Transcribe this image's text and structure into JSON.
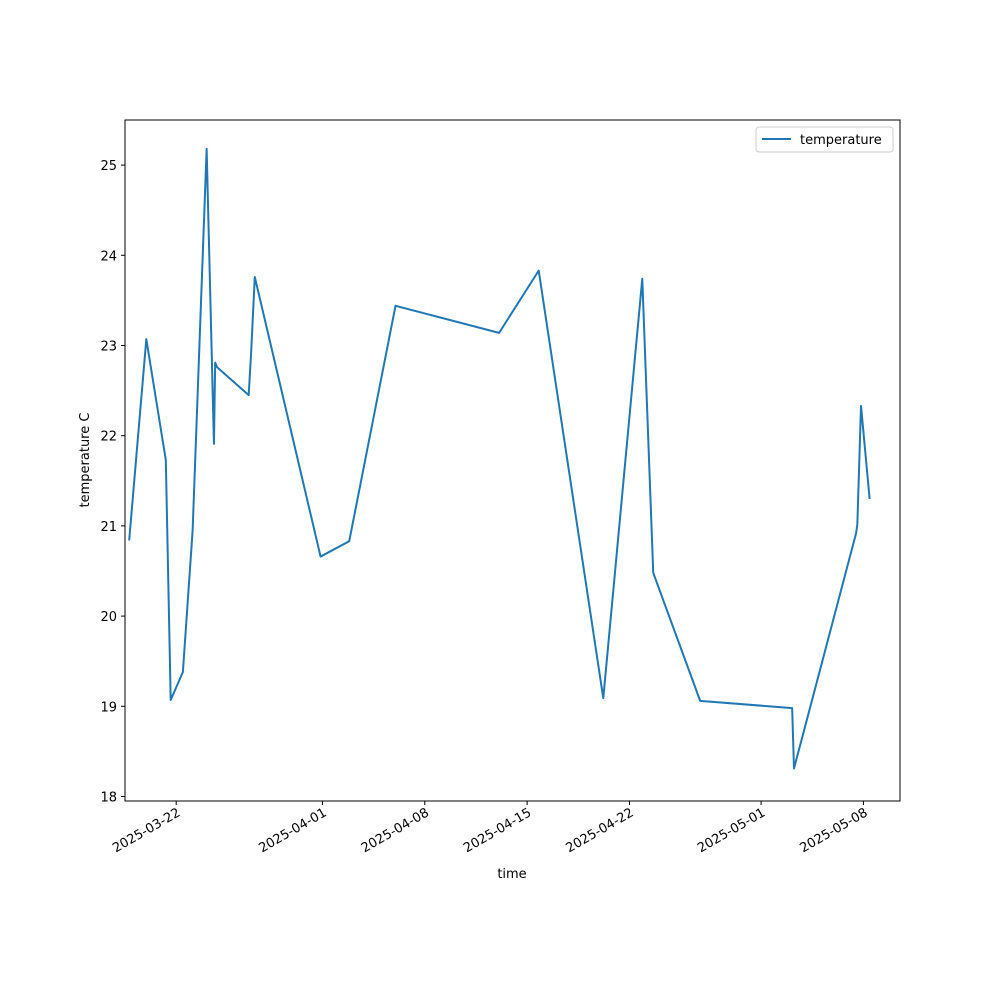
{
  "chart_data": {
    "type": "line",
    "xlabel": "time",
    "ylabel": "temperature C",
    "x_scale": "date",
    "xlim": [
      "2025-03-18T12:00",
      "2025-05-10T12:00"
    ],
    "ylim": [
      17.95,
      25.5
    ],
    "yticks": [
      18,
      19,
      20,
      21,
      22,
      23,
      24,
      25
    ],
    "xticks": [
      "2025-03-22",
      "2025-04-01",
      "2025-04-08",
      "2025-04-15",
      "2025-04-22",
      "2025-05-01",
      "2025-05-08"
    ],
    "grid": false,
    "legend": {
      "position": "top-right",
      "entries": [
        "temperature"
      ]
    },
    "series": [
      {
        "name": "temperature",
        "color": "#1f77b4",
        "x": [
          "2025-03-18T19:00",
          "2025-03-19T23:00",
          "2025-03-21T07:00",
          "2025-03-21T15:00",
          "2025-03-22T11:00",
          "2025-03-23T03:00",
          "2025-03-24T02:00",
          "2025-03-24T14:00",
          "2025-03-24T16:00",
          "2025-03-24T19:00",
          "2025-03-26T23:00",
          "2025-03-27T03:00",
          "2025-03-27T09:00",
          "2025-03-31T21:00",
          "2025-04-02T20:00",
          "2025-04-06T00:00",
          "2025-04-13T02:00",
          "2025-04-15T19:00",
          "2025-04-20T05:00",
          "2025-04-22T21:00",
          "2025-04-23T15:00",
          "2025-04-26T20:00",
          "2025-05-03T03:00",
          "2025-05-03T06:00",
          "2025-05-07T12:00",
          "2025-05-07T14:00",
          "2025-05-07T20:00",
          "2025-05-08T10:00"
        ],
        "y": [
          20.85,
          23.07,
          21.73,
          19.07,
          19.38,
          20.95,
          25.18,
          21.91,
          22.81,
          22.76,
          22.45,
          22.92,
          23.76,
          20.66,
          20.83,
          23.44,
          23.14,
          23.83,
          19.09,
          23.74,
          20.48,
          19.06,
          18.98,
          18.31,
          20.92,
          21.02,
          22.33,
          21.31
        ]
      }
    ]
  }
}
